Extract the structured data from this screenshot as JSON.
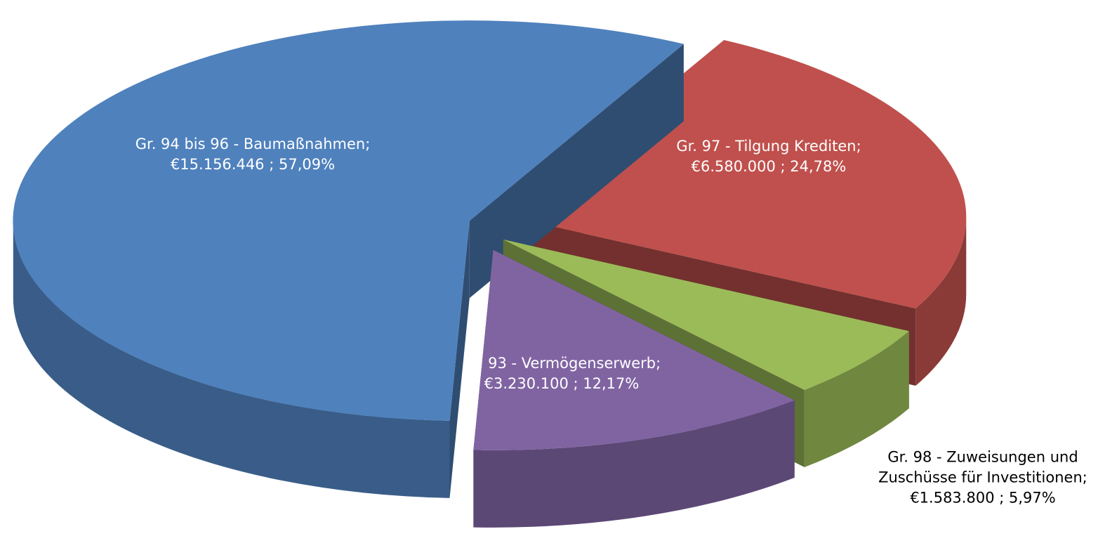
{
  "chart_data": {
    "type": "pie3d",
    "categories": [
      "Gr. 97 - Tilgung Krediten;",
      "Gr. 98 - Zuweisungen und Zuschüsse für Investitionen;",
      "Gr. 93 - Vermögenserwerb;",
      "Gr. 94 bis 96 - Baumaßnahmen;"
    ],
    "values": [
      6580000,
      1583800,
      3230100,
      15156446
    ],
    "value_labels": [
      "€6.580.000 ; 24,78%",
      "€1.583.800 ; 5,97%",
      "€3.230.100 ; 12,17%",
      "€15.156.446 ; 57,09%"
    ],
    "colors": [
      "#c0504d",
      "#9bbb59",
      "#8064a2",
      "#4f81bd"
    ]
  }
}
